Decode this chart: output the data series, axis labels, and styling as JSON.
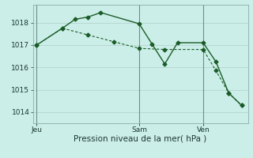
{
  "xlabel": "Pression niveau de la mer( hPa )",
  "bg_color": "#cceee8",
  "grid_color": "#b8d8d2",
  "line_color": "#1a5c28",
  "vline_color": "#6b8f88",
  "ylim": [
    1013.5,
    1018.8
  ],
  "yticks": [
    1014,
    1015,
    1016,
    1017,
    1018
  ],
  "x_day_labels": [
    {
      "label": "Jeu",
      "x": 0
    },
    {
      "label": "Sam",
      "x": 8
    },
    {
      "label": "Ven",
      "x": 13
    }
  ],
  "vlines": [
    0,
    8,
    13
  ],
  "xlim": [
    -0.3,
    16.5
  ],
  "series1_x": [
    0,
    2,
    3,
    4,
    5,
    8,
    9,
    10,
    11,
    13,
    14,
    15,
    16
  ],
  "series1_y": [
    1017.0,
    1017.75,
    1018.15,
    1018.25,
    1018.45,
    1017.95,
    1017.05,
    1016.15,
    1017.1,
    1017.1,
    1016.25,
    1014.85,
    1014.3
  ],
  "series2_x": [
    0,
    2,
    4,
    6,
    8,
    10,
    13,
    14,
    15,
    16
  ],
  "series2_y": [
    1017.0,
    1017.75,
    1017.45,
    1017.15,
    1016.85,
    1016.8,
    1016.8,
    1015.85,
    1014.85,
    1014.3
  ],
  "font_size_label": 7.5,
  "font_size_tick": 6.5
}
